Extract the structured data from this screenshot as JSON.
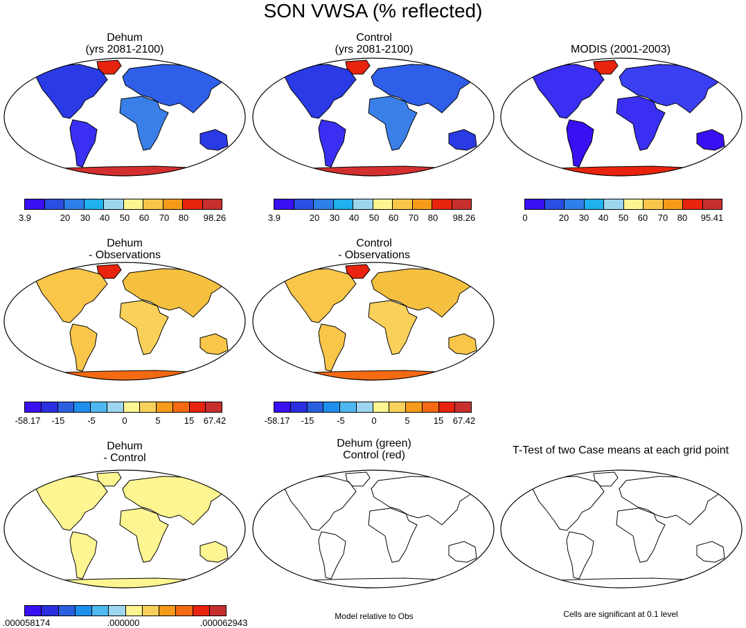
{
  "figure_title": "SON VWSA (% reflected)",
  "colors": {
    "abs_scale": [
      "#3a0ff2",
      "#2a4fe0",
      "#2f7fe8",
      "#1fb0ee",
      "#9cd6ee",
      "#fdf591",
      "#f9c64a",
      "#f59a1a",
      "#e8230e",
      "#c72f2f"
    ],
    "diff_scale": [
      "#3a0ff2",
      "#2a2fe0",
      "#2a5fe0",
      "#1f8fee",
      "#4fb8f0",
      "#9cd6ee",
      "#fdf591",
      "#f9d15a",
      "#f59a1a",
      "#f46a12",
      "#e8230e",
      "#c72f2f"
    ],
    "ctrl_scale": [
      "#3a0ff2",
      "#2a2fe0",
      "#2a5fe0",
      "#1f8fee",
      "#4fb8f0",
      "#9cd6ee",
      "#fdf591",
      "#f9d15a",
      "#f59a1a",
      "#f46a12",
      "#e8230e",
      "#c72f2f"
    ]
  },
  "panels": {
    "p1": {
      "title1": "Dehum",
      "title2": "(yrs 2081-2100)",
      "cb_labels": [
        "3.9",
        "20",
        "30",
        "40",
        "50",
        "60",
        "70",
        "80",
        "98.26"
      ]
    },
    "p2": {
      "title1": "Control",
      "title2": "(yrs 2081-2100)",
      "cb_labels": [
        "3.9",
        "20",
        "30",
        "40",
        "50",
        "60",
        "70",
        "80",
        "98.26"
      ]
    },
    "p3": {
      "title1": "MODIS (2001-2003)",
      "cb_labels": [
        "0",
        "20",
        "30",
        "40",
        "50",
        "60",
        "70",
        "80",
        "95.41"
      ]
    },
    "p4": {
      "title1": "Dehum",
      "title2": "- Observations",
      "cb_labels": [
        "-58.17",
        "-15",
        "-5",
        "0",
        "5",
        "15",
        "67.42"
      ]
    },
    "p5": {
      "title1": "Control",
      "title2": "- Observations",
      "cb_labels": [
        "-58.17",
        "-15",
        "-5",
        "0",
        "5",
        "15",
        "67.42"
      ]
    },
    "p7": {
      "title1": "Dehum",
      "title2": "- Control",
      "cb_labels": [
        ".000058174",
        ".000000",
        ".000062943"
      ]
    },
    "p8": {
      "title1": "Dehum (green)",
      "title2": "Control (red)",
      "note": "Model relative to Obs"
    },
    "p9": {
      "title1": "T-Test of two Case means at each grid point",
      "note": "Cells are significant at 0.1 level"
    }
  }
}
